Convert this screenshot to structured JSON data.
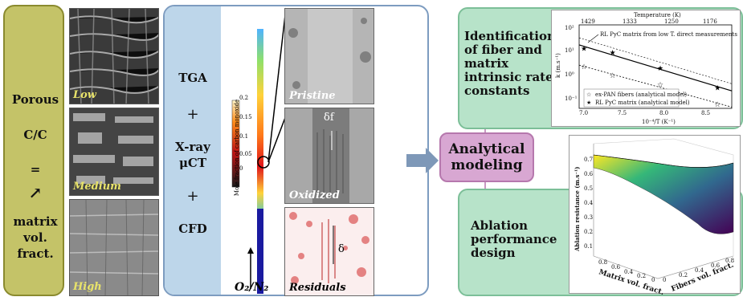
{
  "left_panel": {
    "title_1": "Porous",
    "title_2": "C/C",
    "equals": "=",
    "arrow": "↗",
    "title_3": "matrix",
    "title_4": "vol.",
    "title_5": "fract.",
    "tiles": [
      {
        "label": "Low"
      },
      {
        "label": "Medium"
      },
      {
        "label": "High"
      }
    ]
  },
  "methods": {
    "tga": "TGA",
    "plus1": "+",
    "xray": "X-ray",
    "uct": "μCT",
    "plus2": "+",
    "cfd": "CFD"
  },
  "colorbar": {
    "label": "Mole fraction of carbon monoxide",
    "ticks": [
      "0",
      "0.05",
      "0.1",
      "0.15",
      "0.2"
    ],
    "flow_label": "O₂/N₂"
  },
  "images": {
    "pristine": "Pristine",
    "oxidized": "Oxidized",
    "residuals": "Residuals",
    "delta_f": "δf",
    "delta_f_sub": "f",
    "delta": "δ"
  },
  "center": {
    "label_1": "Analytical",
    "label_2": "modeling"
  },
  "right_top": {
    "line_1": "Identification",
    "line_2": "of fiber and",
    "line_3": "matrix",
    "line_4": "intrinsic rate",
    "line_5": "constants"
  },
  "right_bottom": {
    "line_1": "Ablation",
    "line_2": "performance",
    "line_3": "design"
  },
  "chart_data": [
    {
      "type": "scatter",
      "title": "",
      "top_axis_label": "Temperature (K)",
      "top_ticks": [
        "1429",
        "1333",
        "1250",
        "1176"
      ],
      "xlabel": "10⁻⁴/T (K⁻¹)",
      "ylabel": "k (m.s⁻¹)",
      "x_ticks": [
        "7.0",
        "7.5",
        "8.0",
        "8.5"
      ],
      "xlim": [
        7.0,
        8.6
      ],
      "ylog": true,
      "y_ticks": [
        "10⁻¹",
        "10⁰",
        "10¹",
        "10²"
      ],
      "annotation": "RL PyC matrix from low T. direct measurements",
      "series": [
        {
          "name": "ex-PAN fibers (analytical model)",
          "marker": "open-star",
          "x": [
            7.05,
            7.35,
            7.85,
            8.45
          ],
          "y": [
            3.2,
            1.5,
            0.7,
            0.14
          ]
        },
        {
          "name": "RL PyC matrix (analytical model)",
          "marker": "filled-star",
          "x": [
            7.05,
            7.35,
            7.85,
            8.45
          ],
          "y": [
            14,
            10,
            2.8,
            0.55
          ]
        }
      ]
    },
    {
      "type": "surface",
      "zlabel": "Ablation resistance (m.s⁻¹)",
      "xlabel": "Matrix vol. fract.",
      "ylabel": "Fibers vol. fract.",
      "z_ticks": [
        "0.1",
        "0.2",
        "0.3",
        "0.4",
        "0.5",
        "0.6",
        "0.7"
      ],
      "x_ticks": [
        "0",
        "0.2",
        "0.4",
        "0.6",
        "0.8"
      ],
      "y_ticks": [
        "0",
        "0.2",
        "0.4",
        "0.6",
        "0.8"
      ]
    }
  ],
  "colors": {
    "left_panel": "#c4c368",
    "mid_panel": "#bdd6ea",
    "green_box": "#b7e3c9",
    "pink_box": "#d8a7d2",
    "label_yellow": "#e8e36a"
  }
}
